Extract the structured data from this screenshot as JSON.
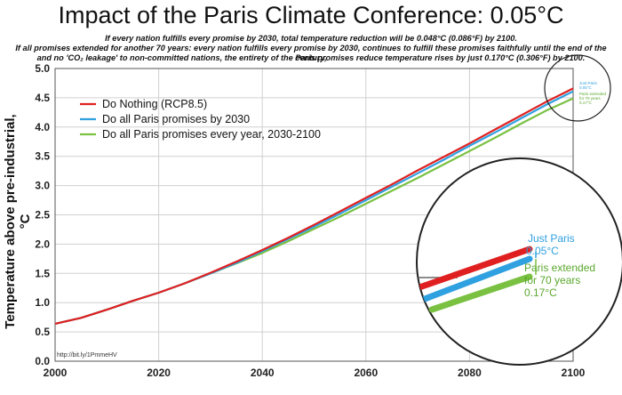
{
  "header": {
    "title": "Impact of the Paris Climate Conference: 0.05°C",
    "subtitle_line1": "If every nation fulfills every promise by 2030, total temperature reduction will be 0.048°C (0.086°F) by 2100.",
    "subtitle_line2": "If all promises extended for another 70 years: every nation fulfills every promise by 2030, continues to fulfill these promises faithfully until the end of the century,",
    "subtitle_line3": "and no 'CO₂ leakage' to non-committed nations, the entirety of the Paris promises reduce temperature rises by just 0.170°C (0.306°F) by 2100."
  },
  "source_label": "http://bit.ly/1PmmeHV",
  "annotations": {
    "just_paris_1": "Just Paris",
    "just_paris_2": "0.05°C",
    "extended_1": "Paris extended",
    "extended_2": "for 70 years",
    "extended_3": "0.17°C",
    "mini_just_paris_1": "Just Paris",
    "mini_just_paris_2": "0.05°C",
    "mini_extended_1": "Paris extended",
    "mini_extended_2": "for 70 years",
    "mini_extended_3": "0.17°C"
  },
  "chart_data": {
    "type": "line",
    "title": "Impact of the Paris Climate Conference: 0.05°C",
    "xlabel": "",
    "ylabel": "Temperature above pre-industrial, °C",
    "xlim": [
      2000,
      2100
    ],
    "ylim": [
      0.0,
      5.0
    ],
    "x_ticks": [
      2000,
      2020,
      2040,
      2060,
      2080,
      2100
    ],
    "y_ticks": [
      "0.0",
      "0.5",
      "1.0",
      "1.5",
      "2.0",
      "2.5",
      "3.0",
      "3.5",
      "4.0",
      "4.5",
      "5.0"
    ],
    "grid": true,
    "legend_position": "top-left",
    "x": [
      2000,
      2005,
      2010,
      2015,
      2020,
      2025,
      2030,
      2035,
      2040,
      2045,
      2050,
      2055,
      2060,
      2065,
      2070,
      2075,
      2080,
      2085,
      2090,
      2095,
      2100
    ],
    "series": [
      {
        "name": "Do Nothing (RCP8.5)",
        "color": "#e02020",
        "values": [
          0.64,
          0.74,
          0.88,
          1.03,
          1.17,
          1.33,
          1.51,
          1.7,
          1.9,
          2.11,
          2.33,
          2.56,
          2.79,
          3.02,
          3.26,
          3.49,
          3.72,
          3.96,
          4.2,
          4.44,
          4.66
        ]
      },
      {
        "name": "Do all Paris promises by 2030",
        "color": "#2fa0e0",
        "values": [
          0.64,
          0.74,
          0.88,
          1.03,
          1.17,
          1.33,
          1.5,
          1.68,
          1.88,
          2.09,
          2.3,
          2.52,
          2.75,
          2.98,
          3.21,
          3.44,
          3.68,
          3.91,
          4.15,
          4.39,
          4.61
        ]
      },
      {
        "name": "Do all Paris promises every year, 2030-2100",
        "color": "#7ac142",
        "values": [
          0.64,
          0.74,
          0.88,
          1.03,
          1.17,
          1.33,
          1.5,
          1.67,
          1.85,
          2.05,
          2.26,
          2.47,
          2.69,
          2.91,
          3.13,
          3.36,
          3.59,
          3.82,
          4.06,
          4.29,
          4.49
        ]
      }
    ]
  }
}
